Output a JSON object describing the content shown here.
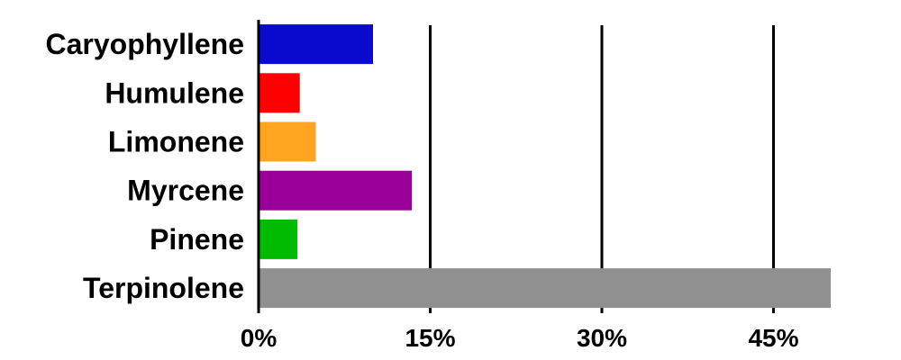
{
  "chart_data": {
    "type": "bar",
    "orientation": "horizontal",
    "categories": [
      "Caryophyllene",
      "Humulene",
      "Limonene",
      "Myrcene",
      "Pinene",
      "Terpinolene"
    ],
    "values": [
      10,
      3.6,
      5,
      13.4,
      3.4,
      50
    ],
    "colors": [
      "#0A0ACC",
      "#FF0000",
      "#FFA520",
      "#990099",
      "#00BB00",
      "#909090"
    ],
    "value_unit": "%",
    "xlim": [
      0,
      50
    ],
    "x_ticks": [
      0,
      15,
      30,
      45
    ],
    "x_tick_labels": [
      "0%",
      "15%",
      "30%",
      "45%"
    ],
    "grid": "vertical lines at 15%, 30%, 45%",
    "title": "",
    "xlabel": "",
    "ylabel": "",
    "legend": "none"
  }
}
